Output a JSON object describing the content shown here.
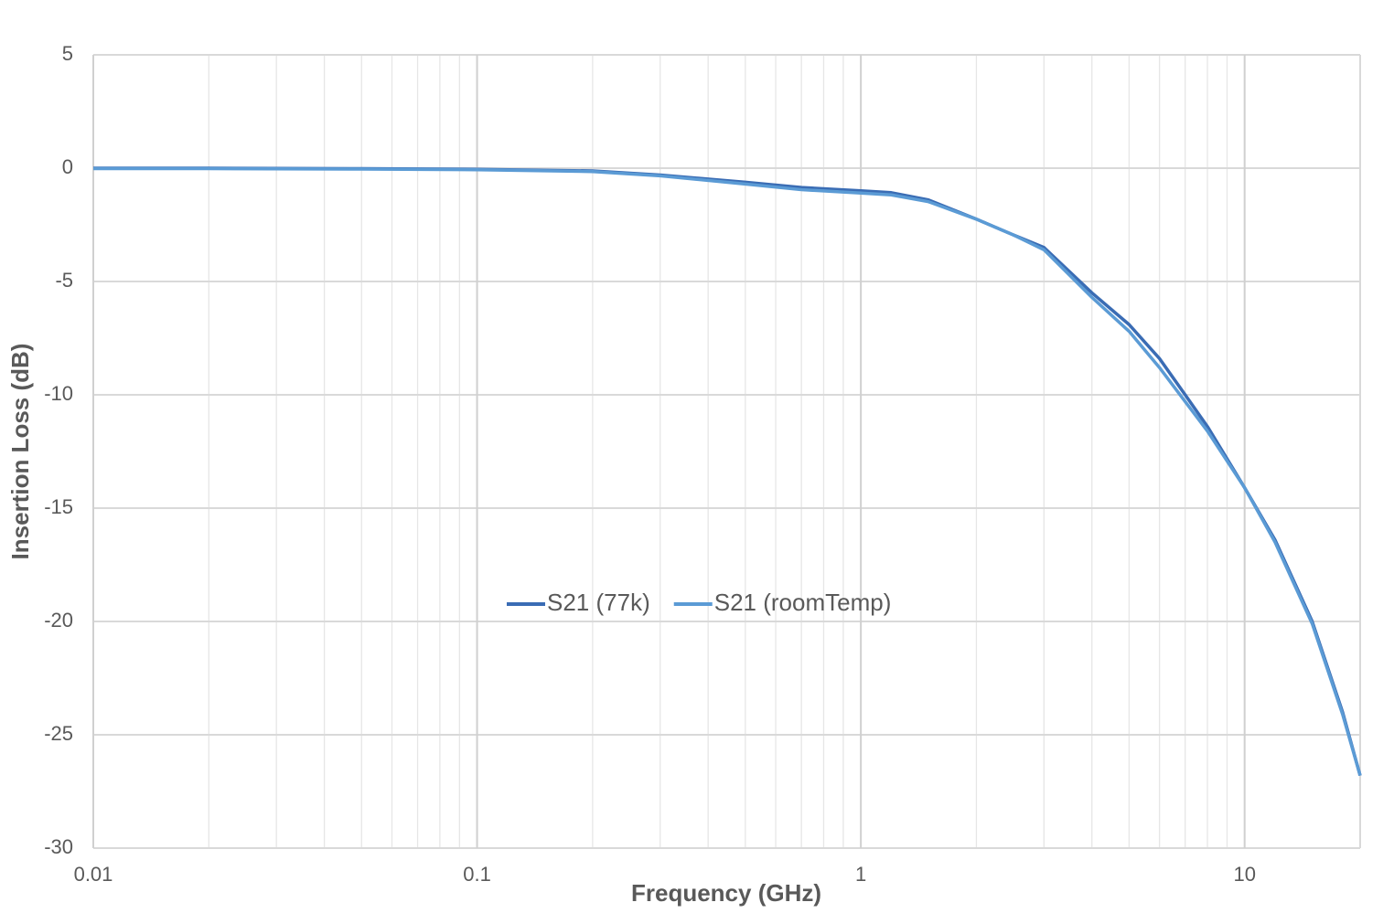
{
  "chart_data": {
    "type": "line",
    "x_label": "Frequency (GHz)",
    "y_label": "Insertion Loss (dB)",
    "x": [
      0.01,
      0.02,
      0.05,
      0.1,
      0.2,
      0.3,
      0.5,
      0.7,
      1,
      1.2,
      1.5,
      2,
      2.5,
      3,
      4,
      5,
      6,
      7,
      8,
      10,
      12,
      15,
      18,
      20
    ],
    "series": [
      {
        "name": "S21 (77k)",
        "color": "#3a6cb4",
        "values": [
          0,
          0,
          -0.02,
          -0.05,
          -0.12,
          -0.3,
          -0.62,
          -0.85,
          -1.0,
          -1.08,
          -1.4,
          -2.25,
          -2.95,
          -3.5,
          -5.5,
          -6.9,
          -8.4,
          -10.0,
          -11.4,
          -14.1,
          -16.4,
          -20.0,
          -24.0,
          -26.8
        ]
      },
      {
        "name": "S21 (roomTemp)",
        "color": "#5b9bd5",
        "values": [
          -0.02,
          -0.02,
          -0.04,
          -0.07,
          -0.15,
          -0.34,
          -0.7,
          -0.95,
          -1.1,
          -1.18,
          -1.48,
          -2.25,
          -2.95,
          -3.6,
          -5.7,
          -7.2,
          -8.8,
          -10.3,
          -11.6,
          -14.1,
          -16.5,
          -20.1,
          -24.1,
          -26.8
        ]
      }
    ],
    "xlim": [
      0.01,
      20
    ],
    "xticks": [
      0.01,
      0.1,
      1,
      10
    ],
    "xminorticks": [
      0.02,
      0.03,
      0.04,
      0.05,
      0.06,
      0.07,
      0.08,
      0.09,
      0.2,
      0.3,
      0.4,
      0.5,
      0.6,
      0.7,
      0.8,
      0.9,
      2,
      3,
      4,
      5,
      6,
      7,
      8,
      9,
      20
    ],
    "xscale": "log",
    "ylim": [
      -30,
      5
    ],
    "yticks": [
      -30,
      -25,
      -20,
      -15,
      -10,
      -5,
      0,
      5
    ],
    "grid": true,
    "legend": "center"
  }
}
